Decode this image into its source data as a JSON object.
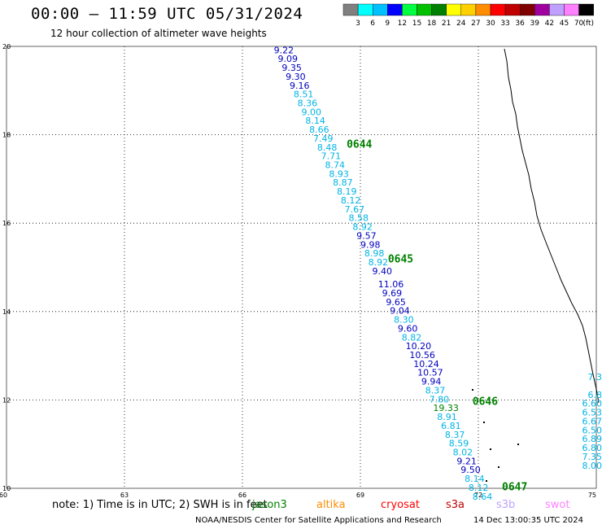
{
  "header": {
    "title": "00:00 – 11:59 UTC 05/31/2024",
    "subtitle": "12 hour collection of altimeter wave heights"
  },
  "legend": {
    "unit": "(ft)",
    "bins": [
      {
        "label": "3",
        "color": "#808080"
      },
      {
        "label": "6",
        "color": "#00ffff"
      },
      {
        "label": "9",
        "color": "#00c0ff"
      },
      {
        "label": "12",
        "color": "#0000ff"
      },
      {
        "label": "15",
        "color": "#00ff40"
      },
      {
        "label": "18",
        "color": "#00c000"
      },
      {
        "label": "21",
        "color": "#008000"
      },
      {
        "label": "24",
        "color": "#ffff00"
      },
      {
        "label": "27",
        "color": "#ffd000"
      },
      {
        "label": "30",
        "color": "#ff8c00"
      },
      {
        "label": "33",
        "color": "#ff0000"
      },
      {
        "label": "36",
        "color": "#c00000"
      },
      {
        "label": "39",
        "color": "#800000"
      },
      {
        "label": "42",
        "color": "#a000a0"
      },
      {
        "label": "45",
        "color": "#c0a0ff"
      },
      {
        "label": "70",
        "color": "#ff80ff"
      },
      {
        "label": "",
        "color": "#000000"
      }
    ]
  },
  "map": {
    "lon_range": [
      60,
      75
    ],
    "lat_range": [
      10,
      20
    ],
    "x_ticks": [
      "60",
      "63",
      "66",
      "69",
      "72",
      "75"
    ],
    "y_ticks": [
      "10",
      "12",
      "14",
      "16",
      "18",
      "20"
    ],
    "track_labels": [
      {
        "text": "0644",
        "lon": 68.65,
        "lat": 17.8
      },
      {
        "text": "0645",
        "lon": 69.7,
        "lat": 15.2
      },
      {
        "text": "0646",
        "lon": 71.85,
        "lat": 11.98
      },
      {
        "text": "0647",
        "lon": 72.6,
        "lat": 10.05
      }
    ],
    "track": [
      {
        "v": "9.22",
        "lat": 19.92,
        "c": "#0000c0"
      },
      {
        "v": "9.09",
        "lat": 19.72,
        "c": "#0000c0"
      },
      {
        "v": "9.35",
        "lat": 19.52,
        "c": "#0000c0"
      },
      {
        "v": "9.30",
        "lat": 19.32,
        "c": "#0000c0"
      },
      {
        "v": "9.16",
        "lat": 19.12,
        "c": "#0000c0"
      },
      {
        "v": "8.51",
        "lat": 18.92,
        "c": "#00b4e6"
      },
      {
        "v": "8.36",
        "lat": 18.72,
        "c": "#00b4e6"
      },
      {
        "v": "9.00",
        "lat": 18.52,
        "c": "#00b4e6"
      },
      {
        "v": "8.14",
        "lat": 18.32,
        "c": "#00b4e6"
      },
      {
        "v": "8.66",
        "lat": 18.12,
        "c": "#00b4e6"
      },
      {
        "v": "7.49",
        "lat": 17.92,
        "c": "#00b4e6"
      },
      {
        "v": "8.48",
        "lat": 17.72,
        "c": "#00b4e6"
      },
      {
        "v": "7.71",
        "lat": 17.52,
        "c": "#00b4e6"
      },
      {
        "v": "8.74",
        "lat": 17.32,
        "c": "#00b4e6"
      },
      {
        "v": "8.93",
        "lat": 17.12,
        "c": "#00b4e6"
      },
      {
        "v": "8.87",
        "lat": 16.92,
        "c": "#00b4e6"
      },
      {
        "v": "8.19",
        "lat": 16.72,
        "c": "#00b4e6"
      },
      {
        "v": "8.12",
        "lat": 16.52,
        "c": "#00b4e6"
      },
      {
        "v": "7.67",
        "lat": 16.32,
        "c": "#00b4e6"
      },
      {
        "v": "8.58",
        "lat": 16.12,
        "c": "#00b4e6"
      },
      {
        "v": "8.92",
        "lat": 15.92,
        "c": "#00b4e6"
      },
      {
        "v": "9.57",
        "lat": 15.72,
        "c": "#0000c0"
      },
      {
        "v": "9.98",
        "lat": 15.52,
        "c": "#0000c0"
      },
      {
        "v": "8.98",
        "lat": 15.32,
        "c": "#00b4e6"
      },
      {
        "v": "8.92",
        "lat": 15.12,
        "c": "#00b4e6"
      },
      {
        "v": "9.40",
        "lat": 14.92,
        "c": "#0000c0"
      },
      {
        "v": "11.06",
        "lat": 14.62,
        "c": "#0000c0"
      },
      {
        "v": "9.69",
        "lat": 14.42,
        "c": "#0000c0"
      },
      {
        "v": "9.65",
        "lat": 14.22,
        "c": "#0000c0"
      },
      {
        "v": "9.04",
        "lat": 14.02,
        "c": "#0000c0"
      },
      {
        "v": "8.30",
        "lat": 13.82,
        "c": "#00b4e6"
      },
      {
        "v": "9.60",
        "lat": 13.62,
        "c": "#0000c0"
      },
      {
        "v": "8.82",
        "lat": 13.42,
        "c": "#00b4e6"
      },
      {
        "v": "10.20",
        "lat": 13.22,
        "c": "#0000c0"
      },
      {
        "v": "10.56",
        "lat": 13.02,
        "c": "#0000c0"
      },
      {
        "v": "10.24",
        "lat": 12.82,
        "c": "#0000c0"
      },
      {
        "v": "10.57",
        "lat": 12.62,
        "c": "#0000c0"
      },
      {
        "v": "9.94",
        "lat": 12.42,
        "c": "#0000c0"
      },
      {
        "v": "8.37",
        "lat": 12.22,
        "c": "#00b4e6"
      },
      {
        "v": "7.80",
        "lat": 12.02,
        "c": "#00b4e6"
      },
      {
        "v": "19.33",
        "lat": 11.82,
        "c": "#008000"
      },
      {
        "v": "8.91",
        "lat": 11.62,
        "c": "#00b4e6"
      },
      {
        "v": "6.81",
        "lat": 11.42,
        "c": "#00b4e6"
      },
      {
        "v": "8.37",
        "lat": 11.22,
        "c": "#00b4e6"
      },
      {
        "v": "8.59",
        "lat": 11.02,
        "c": "#00b4e6"
      },
      {
        "v": "8.02",
        "lat": 10.82,
        "c": "#00b4e6"
      },
      {
        "v": "9.21",
        "lat": 10.62,
        "c": "#0000c0"
      },
      {
        "v": "9.50",
        "lat": 10.42,
        "c": "#0000c0"
      },
      {
        "v": "8.14",
        "lat": 10.22,
        "c": "#00b4e6"
      },
      {
        "v": "8.12",
        "lat": 10.02,
        "c": "#00b4e6"
      },
      {
        "v": "8.64",
        "lat": 9.82,
        "c": "#00b4e6"
      }
    ],
    "right_track": [
      {
        "v": "7.3",
        "lat": 12.52,
        "c": "#00b4e6"
      },
      {
        "v": "6.8",
        "lat": 12.12,
        "c": "#00b4e6"
      },
      {
        "v": "6.60",
        "lat": 11.92,
        "c": "#00b4e6"
      },
      {
        "v": "6.53",
        "lat": 11.72,
        "c": "#00b4e6"
      },
      {
        "v": "6.67",
        "lat": 11.52,
        "c": "#00b4e6"
      },
      {
        "v": "6.50",
        "lat": 11.32,
        "c": "#00b4e6"
      },
      {
        "v": "6.89",
        "lat": 11.12,
        "c": "#00b4e6"
      },
      {
        "v": "6.80",
        "lat": 10.92,
        "c": "#00b4e6"
      },
      {
        "v": "7.35",
        "lat": 10.72,
        "c": "#00b4e6"
      },
      {
        "v": "8.00",
        "lat": 10.52,
        "c": "#00b4e6"
      }
    ]
  },
  "footer": {
    "note": "note: 1) Time is in UTC; 2) SWH is in feet",
    "satellites": [
      {
        "name": "jason3",
        "color": "#008000"
      },
      {
        "name": "altika",
        "color": "#ff8c00"
      },
      {
        "name": "cryosat",
        "color": "#ff0000"
      },
      {
        "name": "s3a",
        "color": "#c00000"
      },
      {
        "name": "s3b",
        "color": "#c0a0ff"
      },
      {
        "name": "swot",
        "color": "#ff80ff"
      }
    ],
    "credit": "NOAA/NESDIS Center for Satellite Applications and Research",
    "timestamp": "14 Dec 13:00:35 UTC 2024"
  }
}
